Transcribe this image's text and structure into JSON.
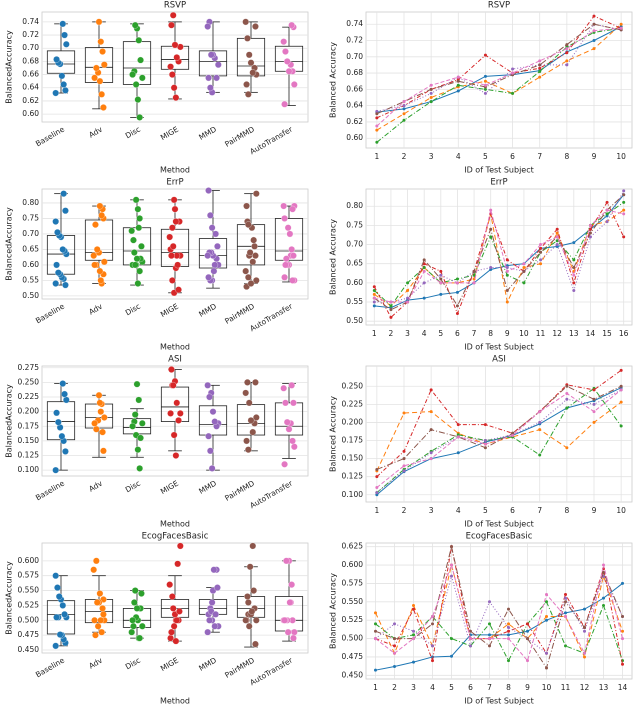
{
  "chart_data": [
    {
      "type": "box",
      "title": "RSVP",
      "x_label": "Method",
      "y_label": "BalancedAccuracy",
      "categories": [
        "Baseline",
        "Adv",
        "Disc",
        "MIGE",
        "MMD",
        "PairMMD",
        "AutoTransfer"
      ],
      "boxes": [
        [
          0.632,
          0.662,
          0.676,
          0.696,
          0.737
        ],
        [
          0.608,
          0.648,
          0.671,
          0.701,
          0.74
        ],
        [
          0.595,
          0.645,
          0.67,
          0.71,
          0.737
        ],
        [
          0.623,
          0.668,
          0.683,
          0.703,
          0.74
        ],
        [
          0.633,
          0.658,
          0.68,
          0.696,
          0.74
        ],
        [
          0.633,
          0.658,
          0.673,
          0.715,
          0.74
        ],
        [
          0.613,
          0.665,
          0.68,
          0.703,
          0.732
        ]
      ],
      "ylim": [
        0.588,
        0.755
      ],
      "yticks": [
        {
          "value": 0.6,
          "label": "0.60"
        },
        0.62,
        0.64,
        0.66,
        0.68,
        {
          "value": 0.7,
          "label": "0.70"
        },
        0.72,
        0.74
      ],
      "grid": true
    },
    {
      "type": "line",
      "title": "RSVP",
      "x_label": "ID of Test Subject",
      "y_label": "Balanced Accuracy",
      "x": [
        1,
        2,
        3,
        4,
        5,
        6,
        7,
        8,
        9,
        10
      ],
      "xlim": [
        0.6,
        10.4
      ],
      "xticks": [
        1,
        2,
        3,
        4,
        5,
        6,
        7,
        8,
        9,
        10
      ],
      "ylim": [
        0.588,
        0.755
      ],
      "yticks": [
        {
          "value": 0.6,
          "label": "0.60"
        },
        0.62,
        0.64,
        0.66,
        0.68,
        {
          "value": 0.7,
          "label": "0.70"
        },
        0.72,
        0.74
      ],
      "grid": true,
      "series": [
        {
          "color": "#1f77b4",
          "dash": "none",
          "values": [
            0.632,
            0.636,
            0.645,
            0.658,
            0.676,
            0.678,
            0.683,
            0.706,
            0.72,
            0.737
          ]
        },
        {
          "color": "#ff7f0e",
          "dash": "5,3",
          "values": [
            0.61,
            0.63,
            0.65,
            0.663,
            0.67,
            0.655,
            0.675,
            0.695,
            0.71,
            0.74
          ]
        },
        {
          "color": "#2ca02c",
          "dash": "5,2,1,2",
          "values": [
            0.595,
            0.622,
            0.645,
            0.665,
            0.66,
            0.655,
            0.682,
            0.712,
            0.73,
            0.735
          ]
        },
        {
          "color": "#d62728",
          "dash": "4,2,1,2",
          "values": [
            0.625,
            0.64,
            0.66,
            0.672,
            0.702,
            0.68,
            0.686,
            0.705,
            0.75,
            0.735
          ]
        },
        {
          "color": "#9467bd",
          "dash": "1,2",
          "values": [
            0.633,
            0.64,
            0.655,
            0.675,
            0.655,
            0.685,
            0.69,
            0.69,
            0.74,
            0.733
          ]
        },
        {
          "color": "#8c564b",
          "dash": "6,2,1,2",
          "values": [
            0.63,
            0.645,
            0.66,
            0.67,
            0.663,
            0.678,
            0.69,
            0.715,
            0.74,
            0.733
          ]
        },
        {
          "color": "#e377c2",
          "dash": "4,2",
          "values": [
            0.615,
            0.645,
            0.665,
            0.675,
            0.665,
            0.68,
            0.695,
            0.71,
            0.732,
            0.735
          ]
        }
      ]
    },
    {
      "type": "box",
      "title": "ErrP",
      "x_label": "Method",
      "y_label": "BalancedAccuracy",
      "categories": [
        "Baseline",
        "Adv",
        "Disc",
        "MIGE",
        "MMD",
        "PairMMD",
        "AutoTransfer"
      ],
      "boxes": [
        [
          0.535,
          0.57,
          0.635,
          0.695,
          0.83
        ],
        [
          0.54,
          0.615,
          0.64,
          0.745,
          0.79
        ],
        [
          0.535,
          0.6,
          0.645,
          0.72,
          0.81
        ],
        [
          0.51,
          0.595,
          0.64,
          0.715,
          0.81
        ],
        [
          0.525,
          0.59,
          0.63,
          0.685,
          0.84
        ],
        [
          0.54,
          0.6,
          0.66,
          0.73,
          0.83
        ],
        [
          0.545,
          0.615,
          0.645,
          0.75,
          0.79
        ]
      ],
      "ylim": [
        0.49,
        0.845
      ],
      "yticks": [
        {
          "value": 0.5,
          "label": "0.50"
        },
        0.55,
        {
          "value": 0.6,
          "label": "0.60"
        },
        0.65,
        {
          "value": 0.7,
          "label": "0.70"
        },
        0.75,
        {
          "value": 0.8,
          "label": "0.80"
        }
      ],
      "grid": true
    },
    {
      "type": "line",
      "title": "ErrP",
      "x_label": "ID of Test Subject",
      "y_label": "Balanced Accuracy",
      "x": [
        1,
        2,
        3,
        4,
        5,
        6,
        7,
        8,
        9,
        10,
        11,
        12,
        13,
        14,
        15,
        16
      ],
      "xlim": [
        0.5,
        16.5
      ],
      "xticks": [
        1,
        2,
        3,
        4,
        5,
        6,
        7,
        8,
        9,
        10,
        11,
        12,
        13,
        14,
        15,
        16
      ],
      "ylim": [
        0.49,
        0.845
      ],
      "yticks": [
        {
          "value": 0.5,
          "label": "0.50"
        },
        0.55,
        {
          "value": 0.6,
          "label": "0.60"
        },
        0.65,
        {
          "value": 0.7,
          "label": "0.70"
        },
        0.75,
        {
          "value": 0.8,
          "label": "0.80"
        }
      ],
      "grid": true,
      "series": [
        {
          "color": "#1f77b4",
          "dash": "none",
          "values": [
            0.54,
            0.535,
            0.555,
            0.56,
            0.57,
            0.575,
            0.6,
            0.635,
            0.645,
            0.65,
            0.69,
            0.695,
            0.705,
            0.74,
            0.775,
            0.83
          ]
        },
        {
          "color": "#ff7f0e",
          "dash": "5,3",
          "values": [
            0.57,
            0.54,
            0.58,
            0.64,
            0.6,
            0.6,
            0.61,
            0.78,
            0.55,
            0.64,
            0.65,
            0.73,
            0.63,
            0.75,
            0.76,
            0.79
          ]
        },
        {
          "color": "#2ca02c",
          "dash": "5,2,1,2",
          "values": [
            0.58,
            0.54,
            0.6,
            0.64,
            0.6,
            0.61,
            0.62,
            0.72,
            0.62,
            0.6,
            0.68,
            0.71,
            0.66,
            0.75,
            0.78,
            0.81
          ]
        },
        {
          "color": "#d62728",
          "dash": "4,2,1,2",
          "values": [
            0.59,
            0.51,
            0.55,
            0.65,
            0.63,
            0.52,
            0.63,
            0.78,
            0.66,
            0.63,
            0.69,
            0.74,
            0.6,
            0.74,
            0.81,
            0.72
          ]
        },
        {
          "color": "#9467bd",
          "dash": "1,2",
          "values": [
            0.55,
            0.55,
            0.56,
            0.6,
            0.62,
            0.6,
            0.63,
            0.64,
            0.64,
            0.63,
            0.66,
            0.7,
            0.58,
            0.72,
            0.76,
            0.84
          ]
        },
        {
          "color": "#8c564b",
          "dash": "6,2,1,2",
          "values": [
            0.56,
            0.53,
            0.55,
            0.66,
            0.61,
            0.54,
            0.63,
            0.74,
            0.58,
            0.63,
            0.68,
            0.72,
            0.64,
            0.73,
            0.79,
            0.83
          ]
        },
        {
          "color": "#e377c2",
          "dash": "4,2",
          "values": [
            0.56,
            0.55,
            0.55,
            0.63,
            0.6,
            0.6,
            0.6,
            0.79,
            0.63,
            0.65,
            0.7,
            0.72,
            0.62,
            0.75,
            0.79,
            0.78
          ]
        }
      ]
    },
    {
      "type": "box",
      "title": "ASI",
      "x_label": "Method",
      "y_label": "BalancedAccuracy",
      "categories": [
        "Baseline",
        "Adv",
        "Disc",
        "MIGE",
        "MMD",
        "PairMMD",
        "AutoTransfer"
      ],
      "boxes": [
        [
          0.1,
          0.152,
          0.183,
          0.217,
          0.248
        ],
        [
          0.122,
          0.172,
          0.19,
          0.213,
          0.228
        ],
        [
          0.122,
          0.162,
          0.173,
          0.188,
          0.205
        ],
        [
          0.133,
          0.183,
          0.208,
          0.242,
          0.272
        ],
        [
          0.1,
          0.16,
          0.178,
          0.21,
          0.245
        ],
        [
          0.133,
          0.16,
          0.18,
          0.212,
          0.25
        ],
        [
          0.12,
          0.16,
          0.175,
          0.215,
          0.248
        ]
      ],
      "ylim": [
        0.09,
        0.278
      ],
      "yticks": [
        {
          "value": 0.1,
          "label": "0.100"
        },
        0.125,
        {
          "value": 0.15,
          "label": "0.150"
        },
        0.175,
        {
          "value": 0.2,
          "label": "0.200"
        },
        0.225,
        {
          "value": 0.25,
          "label": "0.250"
        },
        0.275
      ],
      "grid": true
    },
    {
      "type": "line",
      "title": "ASI",
      "x_label": "ID of Test Subject",
      "y_label": "Balanced Accuracy",
      "x": [
        1,
        2,
        3,
        4,
        5,
        6,
        7,
        8,
        9,
        10
      ],
      "xlim": [
        0.6,
        10.4
      ],
      "xticks": [
        1,
        2,
        3,
        4,
        5,
        6,
        7,
        8,
        9,
        10
      ],
      "ylim": [
        0.09,
        0.278
      ],
      "yticks": [
        {
          "value": 0.1,
          "label": "0.100"
        },
        0.125,
        {
          "value": 0.15,
          "label": "0.150"
        },
        0.175,
        {
          "value": 0.2,
          "label": "0.200"
        },
        0.225,
        {
          "value": 0.25,
          "label": "0.250"
        }
      ],
      "grid": true,
      "series": [
        {
          "color": "#1f77b4",
          "dash": "none",
          "values": [
            0.1,
            0.132,
            0.15,
            0.158,
            0.173,
            0.182,
            0.198,
            0.22,
            0.23,
            0.248
          ]
        },
        {
          "color": "#ff7f0e",
          "dash": "5,3",
          "values": [
            0.133,
            0.213,
            0.215,
            0.185,
            0.17,
            0.18,
            0.19,
            0.165,
            0.2,
            0.228
          ]
        },
        {
          "color": "#2ca02c",
          "dash": "5,2,1,2",
          "values": [
            0.103,
            0.135,
            0.16,
            0.183,
            0.175,
            0.18,
            0.155,
            0.22,
            0.247,
            0.195
          ]
        },
        {
          "color": "#d62728",
          "dash": "4,2,1,2",
          "values": [
            0.125,
            0.16,
            0.245,
            0.197,
            0.197,
            0.185,
            0.215,
            0.252,
            0.245,
            0.272
          ]
        },
        {
          "color": "#9467bd",
          "dash": "1,2",
          "values": [
            0.103,
            0.133,
            0.158,
            0.18,
            0.175,
            0.183,
            0.2,
            0.232,
            0.225,
            0.245
          ]
        },
        {
          "color": "#8c564b",
          "dash": "6,2,1,2",
          "values": [
            0.135,
            0.15,
            0.19,
            0.18,
            0.165,
            0.185,
            0.215,
            0.25,
            0.232,
            0.25
          ]
        },
        {
          "color": "#e377c2",
          "dash": "4,2",
          "values": [
            0.11,
            0.14,
            0.15,
            0.18,
            0.17,
            0.182,
            0.215,
            0.24,
            0.215,
            0.245
          ]
        }
      ]
    },
    {
      "type": "box",
      "title": "EcogFacesBasic",
      "x_label": "Method",
      "y_label": "BalancedAccuracy",
      "categories": [
        "Baseline",
        "Adv",
        "Disc",
        "MIGE",
        "MMD",
        "PairMMD",
        "AutoTransfer"
      ],
      "boxes": [
        [
          0.457,
          0.477,
          0.51,
          0.533,
          0.575
        ],
        [
          0.48,
          0.496,
          0.515,
          0.535,
          0.575
        ],
        [
          0.47,
          0.488,
          0.5,
          0.52,
          0.55
        ],
        [
          0.465,
          0.505,
          0.52,
          0.535,
          0.575
        ],
        [
          0.48,
          0.51,
          0.52,
          0.535,
          0.555
        ],
        [
          0.455,
          0.505,
          0.52,
          0.54,
          0.59
        ],
        [
          0.465,
          0.482,
          0.5,
          0.54,
          0.6
        ]
      ],
      "ylim": [
        0.445,
        0.63
      ],
      "yticks": [
        {
          "value": 0.45,
          "label": "0.450"
        },
        0.475,
        {
          "value": 0.5,
          "label": "0.500"
        },
        0.525,
        {
          "value": 0.55,
          "label": "0.550"
        },
        0.575,
        {
          "value": 0.6,
          "label": "0.600"
        }
      ],
      "grid": true
    },
    {
      "type": "line",
      "title": "EcogFacesBasic",
      "x_label": "ID of Test Subject",
      "y_label": "Balanced Accuracy",
      "x": [
        1,
        2,
        3,
        4,
        5,
        6,
        7,
        8,
        9,
        10,
        11,
        12,
        13,
        14
      ],
      "xlim": [
        0.5,
        14.5
      ],
      "xticks": [
        1,
        2,
        3,
        4,
        5,
        6,
        7,
        8,
        9,
        10,
        11,
        12,
        13,
        14
      ],
      "ylim": [
        0.445,
        0.63
      ],
      "yticks": [
        {
          "value": 0.45,
          "label": "0.450"
        },
        0.475,
        {
          "value": 0.5,
          "label": "0.500"
        },
        0.525,
        {
          "value": 0.55,
          "label": "0.550"
        },
        0.575,
        {
          "value": 0.6,
          "label": "0.600"
        },
        0.625
      ],
      "grid": true,
      "series": [
        {
          "color": "#1f77b4",
          "dash": "none",
          "values": [
            0.457,
            0.462,
            0.468,
            0.475,
            0.476,
            0.505,
            0.505,
            0.505,
            0.51,
            0.525,
            0.535,
            0.54,
            0.555,
            0.575
          ]
        },
        {
          "color": "#ff7f0e",
          "dash": "5,3",
          "values": [
            0.535,
            0.48,
            0.545,
            0.49,
            0.6,
            0.5,
            0.5,
            0.52,
            0.5,
            0.53,
            0.53,
            0.475,
            0.585,
            0.51
          ]
        },
        {
          "color": "#2ca02c",
          "dash": "5,2,1,2",
          "values": [
            0.52,
            0.5,
            0.505,
            0.53,
            0.5,
            0.49,
            0.52,
            0.47,
            0.52,
            0.55,
            0.49,
            0.48,
            0.545,
            0.47
          ]
        },
        {
          "color": "#d62728",
          "dash": "4,2,1,2",
          "values": [
            0.5,
            0.49,
            0.54,
            0.47,
            0.625,
            0.5,
            0.5,
            0.51,
            0.52,
            0.48,
            0.56,
            0.515,
            0.595,
            0.465
          ]
        },
        {
          "color": "#9467bd",
          "dash": "1,2",
          "values": [
            0.5,
            0.52,
            0.51,
            0.49,
            0.585,
            0.49,
            0.55,
            0.515,
            0.5,
            0.48,
            0.555,
            0.51,
            0.585,
            0.53
          ]
        },
        {
          "color": "#8c564b",
          "dash": "6,2,1,2",
          "values": [
            0.51,
            0.5,
            0.5,
            0.52,
            0.625,
            0.51,
            0.49,
            0.54,
            0.5,
            0.46,
            0.55,
            0.515,
            0.59,
            0.53
          ]
        },
        {
          "color": "#e377c2",
          "dash": "4,2",
          "values": [
            0.5,
            0.48,
            0.5,
            0.53,
            0.6,
            0.5,
            0.5,
            0.5,
            0.47,
            0.56,
            0.53,
            0.48,
            0.6,
            0.5
          ]
        }
      ]
    }
  ]
}
